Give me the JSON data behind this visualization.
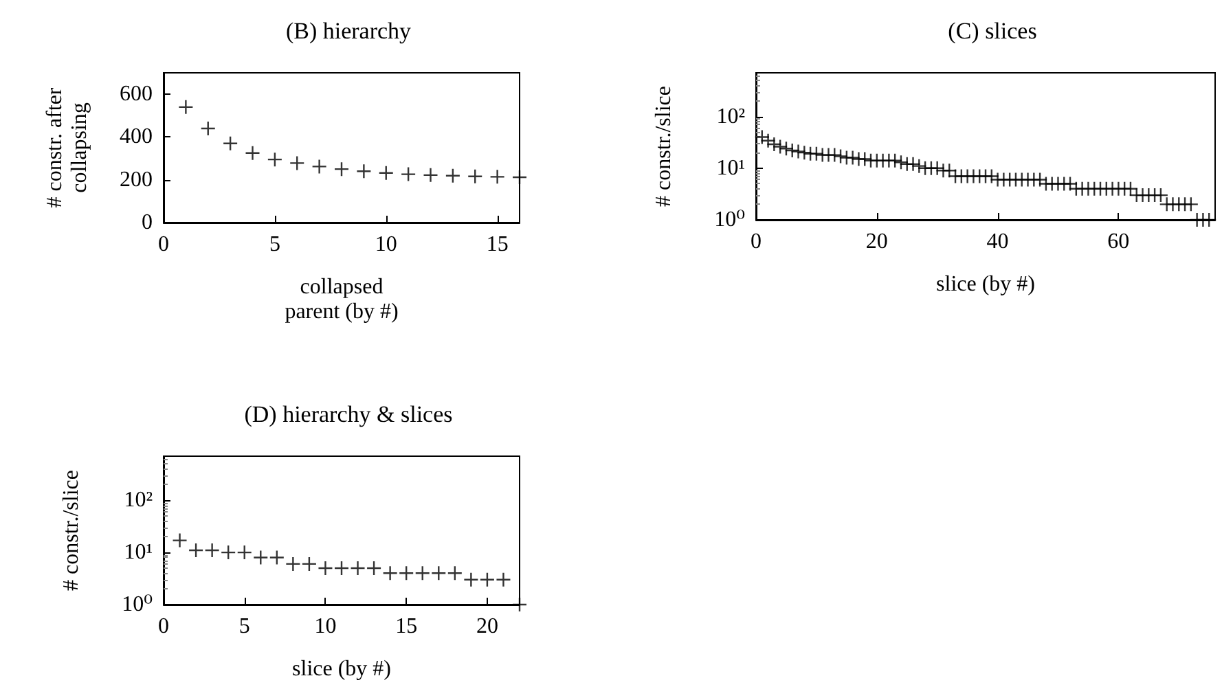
{
  "chart_data": [
    {
      "type": "scatter",
      "title": "(B) hierarchy",
      "xlabel": "collapsed parent (by #)",
      "ylabel": "# constr. after collapsing",
      "marker": "cross",
      "grid": false,
      "x": [
        1,
        2,
        3,
        4,
        5,
        6,
        7,
        8,
        9,
        10,
        11,
        12,
        13,
        14,
        15,
        16
      ],
      "values": [
        540,
        440,
        370,
        325,
        295,
        278,
        262,
        250,
        240,
        232,
        226,
        222,
        219,
        216,
        214,
        212
      ],
      "color": "#000000",
      "xlim": [
        0,
        16
      ],
      "xticks": [
        0,
        5,
        10,
        15
      ],
      "ylim": [
        0,
        700
      ],
      "yticks": [
        0,
        200,
        400,
        600
      ]
    },
    {
      "type": "scatter",
      "title": "(C) slices",
      "xlabel": "slice (by #)",
      "ylabel": "# constr./slice",
      "marker": "cross",
      "grid": false,
      "log": "y",
      "x": [
        1,
        2,
        3,
        4,
        5,
        6,
        7,
        8,
        9,
        10,
        11,
        12,
        13,
        14,
        15,
        16,
        17,
        18,
        19,
        20,
        21,
        22,
        23,
        24,
        25,
        26,
        27,
        28,
        29,
        30,
        31,
        32,
        33,
        34,
        35,
        36,
        37,
        38,
        39,
        40,
        41,
        42,
        43,
        44,
        45,
        46,
        47,
        48,
        49,
        50,
        51,
        52,
        53,
        54,
        55,
        56,
        57,
        58,
        59,
        60,
        61,
        62,
        63,
        64,
        65,
        66,
        67,
        68,
        69,
        70,
        71,
        72,
        73,
        74,
        75
      ],
      "values": [
        40,
        34,
        29,
        26,
        24,
        22,
        21,
        20,
        19,
        19,
        18,
        18,
        18,
        17,
        16,
        16,
        15,
        15,
        14,
        14,
        14,
        14,
        14,
        13,
        12,
        12,
        11,
        10,
        10,
        10,
        9,
        9,
        7,
        7,
        7,
        7,
        7,
        7,
        7,
        6,
        6,
        6,
        6,
        6,
        6,
        6,
        6,
        5,
        5,
        5,
        5,
        5,
        4,
        4,
        4,
        4,
        4,
        4,
        4,
        4,
        4,
        4,
        3,
        3,
        3,
        3,
        3,
        2,
        2,
        2,
        2,
        2,
        1,
        1,
        1
      ],
      "color": "#000000",
      "xlim": [
        0,
        76
      ],
      "xticks": [
        0,
        20,
        40,
        60
      ],
      "ylim": [
        1,
        700
      ],
      "yticks": [
        {
          "value": 1,
          "label": "10⁰"
        },
        {
          "value": 10,
          "label": "10¹"
        },
        {
          "value": 100,
          "label": "10²"
        }
      ]
    },
    {
      "type": "scatter",
      "title": "(D) hierarchy & slices",
      "xlabel": "slice (by #)",
      "ylabel": "# constr./slice",
      "marker": "cross",
      "grid": false,
      "log": "y",
      "x": [
        1,
        2,
        3,
        4,
        5,
        6,
        7,
        8,
        9,
        10,
        11,
        12,
        13,
        14,
        15,
        16,
        17,
        18,
        19,
        20,
        21,
        22
      ],
      "values": [
        17,
        11,
        11,
        10,
        10,
        8,
        8,
        6,
        6,
        5,
        5,
        5,
        5,
        4,
        4,
        4,
        4,
        4,
        3,
        3,
        3,
        1
      ],
      "color": "#000000",
      "xlim": [
        0,
        22
      ],
      "xticks": [
        0,
        5,
        10,
        15,
        20
      ],
      "ylim": [
        1,
        700
      ],
      "yticks": [
        {
          "value": 1,
          "label": "10⁰"
        },
        {
          "value": 10,
          "label": "10¹"
        },
        {
          "value": 100,
          "label": "10²"
        }
      ]
    }
  ]
}
